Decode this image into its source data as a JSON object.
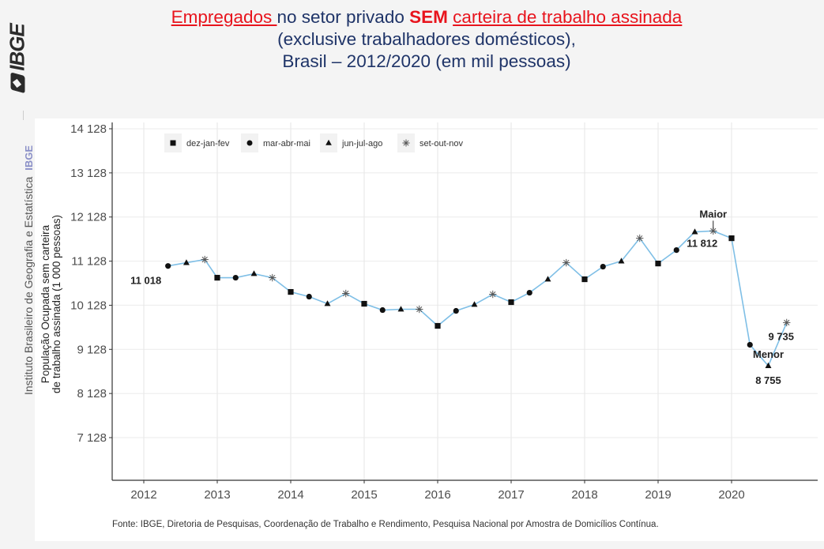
{
  "title": {
    "part1_red_underlined": "Empregados ",
    "part2": "no setor privado ",
    "part3_red_bold": "SEM",
    "part4_space": " ",
    "part5_red_underlined": "carteira de trabalho assinada",
    "line2": "(exclusive trabalhadores domésticos),",
    "line3": "Brasil – 2012/2020 (em mil pessoas)"
  },
  "sidebar": {
    "logo": "IBGE",
    "institute": "Instituto Brasileiro de Geografia e Estatística",
    "institute_short": "IBGE"
  },
  "source": "Fonte: IBGE, Diretoria de Pesquisas, Coordenação de Trabalho e Rendimento, Pesquisa Nacional por Amostra de Domicílios Contínua.",
  "colors": {
    "line": "#7fbfe6",
    "marker": "#111111",
    "title_red": "#e8141d",
    "title_blue": "#1f3468"
  },
  "chart_data": {
    "type": "line",
    "title": "Empregados no setor privado SEM carteira de trabalho assinada (exclusive trabalhadores domésticos), Brasil – 2012/2020 (em mil pessoas)",
    "xlabel": "",
    "ylabel": "População Ocupada sem carteira de trabalho assinada (1 000 pessoas)",
    "ylabel_lines": [
      "População Ocupada sem carteira",
      "de trabalho assinada (1 000 pessoas)"
    ],
    "xlim": [
      2011.58,
      2020.95
    ],
    "ylim": [
      6200,
      14128
    ],
    "x_ticks": [
      2012,
      2013,
      2014,
      2015,
      2016,
      2017,
      2018,
      2019,
      2020
    ],
    "x_tick_labels": [
      "2012",
      "2013",
      "2014",
      "2015",
      "2016",
      "2017",
      "2018",
      "2019",
      "2020"
    ],
    "y_ticks": [
      7128,
      8128,
      9128,
      10128,
      11128,
      12128,
      13128,
      14128
    ],
    "y_tick_labels": [
      "7 128",
      "8 128",
      "9 128",
      "10 128",
      "11 128",
      "12 128",
      "13 128",
      "14 128"
    ],
    "grid": true,
    "legend_position": "top-left",
    "legend": [
      {
        "key": "dez-jan-fev",
        "label": "dez-jan-fev",
        "marker": "square"
      },
      {
        "key": "mar-abr-mai",
        "label": "mar-abr-mai",
        "marker": "circle"
      },
      {
        "key": "jun-jul-ago",
        "label": "jun-jul-ago",
        "marker": "triangle"
      },
      {
        "key": "set-out-nov",
        "label": "set-out-nov",
        "marker": "asterisk"
      }
    ],
    "points": [
      {
        "x": 2012.33,
        "y": 11018,
        "q": "mar-abr-mai"
      },
      {
        "x": 2012.58,
        "y": 11092,
        "q": "jun-jul-ago"
      },
      {
        "x": 2012.83,
        "y": 11164,
        "q": "set-out-nov"
      },
      {
        "x": 2013.0,
        "y": 10752,
        "q": "dez-jan-fev"
      },
      {
        "x": 2013.25,
        "y": 10752,
        "q": "mar-abr-mai"
      },
      {
        "x": 2013.5,
        "y": 10842,
        "q": "jun-jul-ago"
      },
      {
        "x": 2013.75,
        "y": 10752,
        "q": "set-out-nov"
      },
      {
        "x": 2014.0,
        "y": 10430,
        "q": "dez-jan-fev"
      },
      {
        "x": 2014.25,
        "y": 10323,
        "q": "mar-abr-mai"
      },
      {
        "x": 2014.5,
        "y": 10162,
        "q": "jun-jul-ago"
      },
      {
        "x": 2014.75,
        "y": 10395,
        "q": "set-out-nov"
      },
      {
        "x": 2015.0,
        "y": 10162,
        "q": "dez-jan-fev"
      },
      {
        "x": 2015.25,
        "y": 10019,
        "q": "mar-abr-mai"
      },
      {
        "x": 2015.5,
        "y": 10037,
        "q": "jun-jul-ago"
      },
      {
        "x": 2015.75,
        "y": 10037,
        "q": "set-out-nov"
      },
      {
        "x": 2016.0,
        "y": 9661,
        "q": "dez-jan-fev"
      },
      {
        "x": 2016.25,
        "y": 10001,
        "q": "mar-abr-mai"
      },
      {
        "x": 2016.5,
        "y": 10144,
        "q": "jun-jul-ago"
      },
      {
        "x": 2016.75,
        "y": 10377,
        "q": "set-out-nov"
      },
      {
        "x": 2017.0,
        "y": 10198,
        "q": "dez-jan-fev"
      },
      {
        "x": 2017.25,
        "y": 10412,
        "q": "mar-abr-mai"
      },
      {
        "x": 2017.5,
        "y": 10717,
        "q": "jun-jul-ago"
      },
      {
        "x": 2017.75,
        "y": 11092,
        "q": "set-out-nov"
      },
      {
        "x": 2018.0,
        "y": 10717,
        "q": "dez-jan-fev"
      },
      {
        "x": 2018.25,
        "y": 11003,
        "q": "mar-abr-mai"
      },
      {
        "x": 2018.5,
        "y": 11128,
        "q": "jun-jul-ago"
      },
      {
        "x": 2018.75,
        "y": 11647,
        "q": "set-out-nov"
      },
      {
        "x": 2019.0,
        "y": 11074,
        "q": "dez-jan-fev"
      },
      {
        "x": 2019.25,
        "y": 11378,
        "q": "mar-abr-mai"
      },
      {
        "x": 2019.5,
        "y": 11790,
        "q": "jun-jul-ago"
      },
      {
        "x": 2019.75,
        "y": 11812,
        "q": "set-out-nov"
      },
      {
        "x": 2020.0,
        "y": 11647,
        "q": "dez-jan-fev"
      },
      {
        "x": 2020.25,
        "y": 9232,
        "q": "mar-abr-mai"
      },
      {
        "x": 2020.5,
        "y": 8755,
        "q": "jun-jul-ago"
      },
      {
        "x": 2020.75,
        "y": 9735,
        "q": "set-out-nov"
      }
    ],
    "annotations": [
      {
        "point_index": 0,
        "text": "11 018",
        "pos": "below"
      },
      {
        "point_index": 30,
        "text": "11 812",
        "pos": "below-left"
      },
      {
        "point_index": 30,
        "text": "Maior",
        "pos": "above"
      },
      {
        "point_index": 33,
        "text": "Menor",
        "pos": "above"
      },
      {
        "point_index": 33,
        "text": "8 755",
        "pos": "below"
      },
      {
        "point_index": 34,
        "text": "9 735",
        "pos": "below"
      }
    ]
  }
}
